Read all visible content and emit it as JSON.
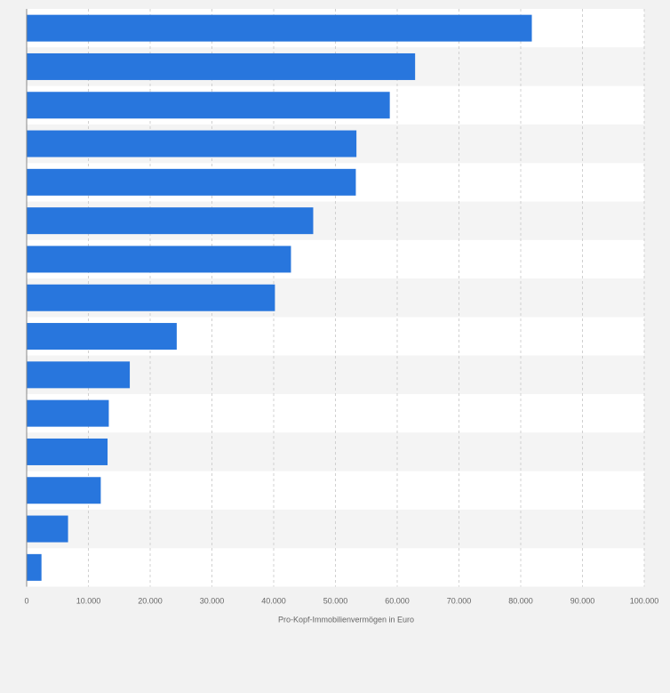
{
  "chart_data": {
    "type": "bar",
    "orientation": "horizontal",
    "categories": [
      "",
      "",
      "",
      "",
      "",
      "",
      "",
      "",
      "",
      "",
      "",
      "",
      "",
      "",
      ""
    ],
    "values": [
      81800,
      62900,
      58800,
      53400,
      53300,
      46400,
      42800,
      40200,
      24300,
      16700,
      13300,
      13100,
      12000,
      6700,
      2400
    ],
    "title": "",
    "xlabel": "Pro-Kopf-Immobilienvermögen in Euro",
    "ylabel": "",
    "xlim": [
      0,
      100000
    ],
    "x_ticks": [
      0,
      10000,
      20000,
      30000,
      40000,
      50000,
      60000,
      70000,
      80000,
      90000,
      100000
    ],
    "x_tick_labels": [
      "0",
      "10.000",
      "20.000",
      "30.000",
      "40.000",
      "50.000",
      "60.000",
      "70.000",
      "80.000",
      "90.000",
      "100.000"
    ],
    "grid": "vertical dashed",
    "legend": "none",
    "bar_color": "#2876dd",
    "band_colors": [
      "#ffffff",
      "#f4f4f4"
    ],
    "gridline_color": "#d0d0d0",
    "text_color": "#666666"
  }
}
